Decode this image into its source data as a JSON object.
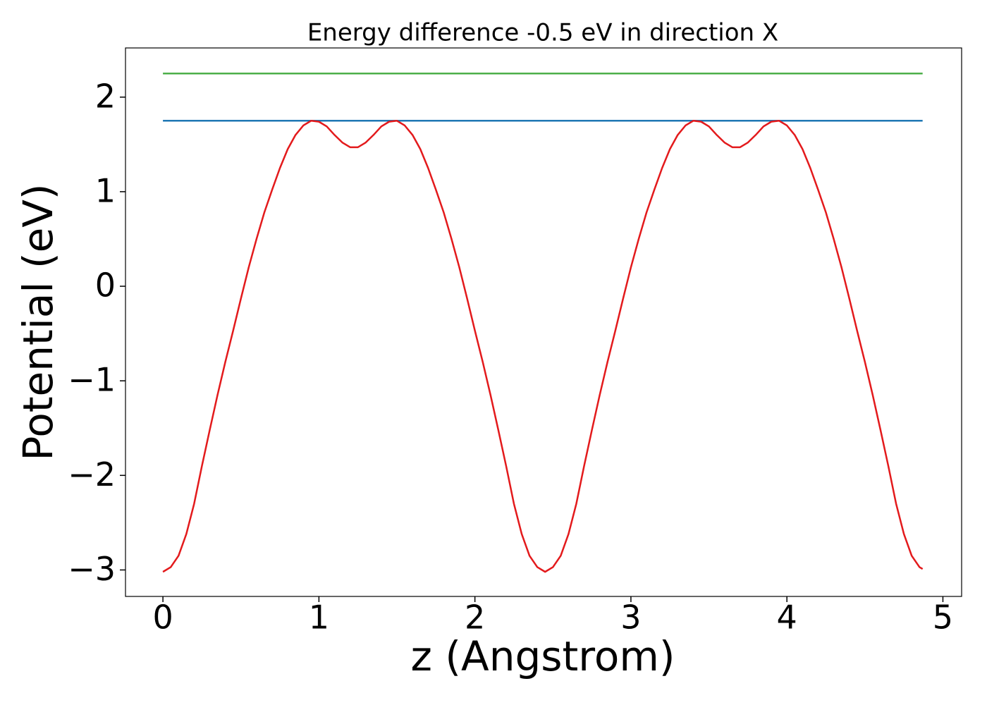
{
  "chart_data": {
    "type": "line",
    "title": "Energy difference -0.5 eV in direction X",
    "x_label": "z (Angstrom)",
    "y_label": "Potential (eV)",
    "xlim": [
      -0.24,
      5.12
    ],
    "ylim": [
      -3.28,
      2.52
    ],
    "xticks": [
      0,
      1,
      2,
      3,
      4,
      5
    ],
    "yticks": [
      {
        "value": -3,
        "label": "−3"
      },
      {
        "value": -2,
        "label": "−2"
      },
      {
        "value": -1,
        "label": "−1"
      },
      0,
      1,
      2
    ],
    "series": [
      {
        "color": "#e31a1c",
        "x": [
          0,
          0.05,
          0.1,
          0.15,
          0.2,
          0.25,
          0.3,
          0.35,
          0.4,
          0.45,
          0.5,
          0.55,
          0.6,
          0.65,
          0.7,
          0.75,
          0.8,
          0.85,
          0.9,
          0.95,
          1,
          1.05,
          1.1,
          1.15,
          1.2,
          1.25,
          1.3,
          1.35,
          1.4,
          1.45,
          1.5,
          1.55,
          1.6,
          1.65,
          1.7,
          1.75,
          1.8,
          1.85,
          1.9,
          1.95,
          2,
          2.05,
          2.1,
          2.15,
          2.2,
          2.25,
          2.3,
          2.35,
          2.4,
          2.45,
          2.5,
          2.55,
          2.6,
          2.65,
          2.7,
          2.75,
          2.8,
          2.85,
          2.9,
          2.95,
          3,
          3.05,
          3.1,
          3.15,
          3.2,
          3.25,
          3.3,
          3.35,
          3.4,
          3.45,
          3.5,
          3.55,
          3.6,
          3.65,
          3.7,
          3.75,
          3.8,
          3.85,
          3.9,
          3.95,
          4,
          4.05,
          4.1,
          4.15,
          4.2,
          4.25,
          4.3,
          4.35,
          4.4,
          4.45,
          4.5,
          4.55,
          4.6,
          4.65,
          4.7,
          4.75,
          4.8,
          4.85,
          4.87
        ],
        "values": [
          -3.02,
          -2.97,
          -2.85,
          -2.62,
          -2.3,
          -1.9,
          -1.52,
          -1.15,
          -0.8,
          -0.47,
          -0.13,
          0.2,
          0.5,
          0.78,
          1.02,
          1.25,
          1.45,
          1.6,
          1.7,
          1.75,
          1.74,
          1.69,
          1.6,
          1.52,
          1.47,
          1.47,
          1.52,
          1.6,
          1.69,
          1.74,
          1.75,
          1.7,
          1.6,
          1.45,
          1.25,
          1.02,
          0.78,
          0.5,
          0.2,
          -0.13,
          -0.47,
          -0.8,
          -1.15,
          -1.52,
          -1.9,
          -2.3,
          -2.62,
          -2.85,
          -2.97,
          -3.02,
          -2.97,
          -2.85,
          -2.62,
          -2.3,
          -1.9,
          -1.52,
          -1.15,
          -0.8,
          -0.47,
          -0.13,
          0.2,
          0.5,
          0.78,
          1.02,
          1.25,
          1.45,
          1.6,
          1.7,
          1.75,
          1.74,
          1.69,
          1.6,
          1.52,
          1.47,
          1.47,
          1.52,
          1.6,
          1.69,
          1.74,
          1.75,
          1.7,
          1.6,
          1.45,
          1.25,
          1.02,
          0.78,
          0.5,
          0.2,
          -0.13,
          -0.47,
          -0.8,
          -1.15,
          -1.52,
          -1.9,
          -2.3,
          -2.62,
          -2.85,
          -2.97,
          -2.99
        ]
      },
      {
        "color": "#1f77b4",
        "x": [
          0,
          4.87
        ],
        "values": [
          1.75,
          1.75
        ]
      },
      {
        "color": "#4daf4a",
        "x": [
          0,
          4.87
        ],
        "values": [
          2.25,
          2.25
        ]
      }
    ]
  }
}
